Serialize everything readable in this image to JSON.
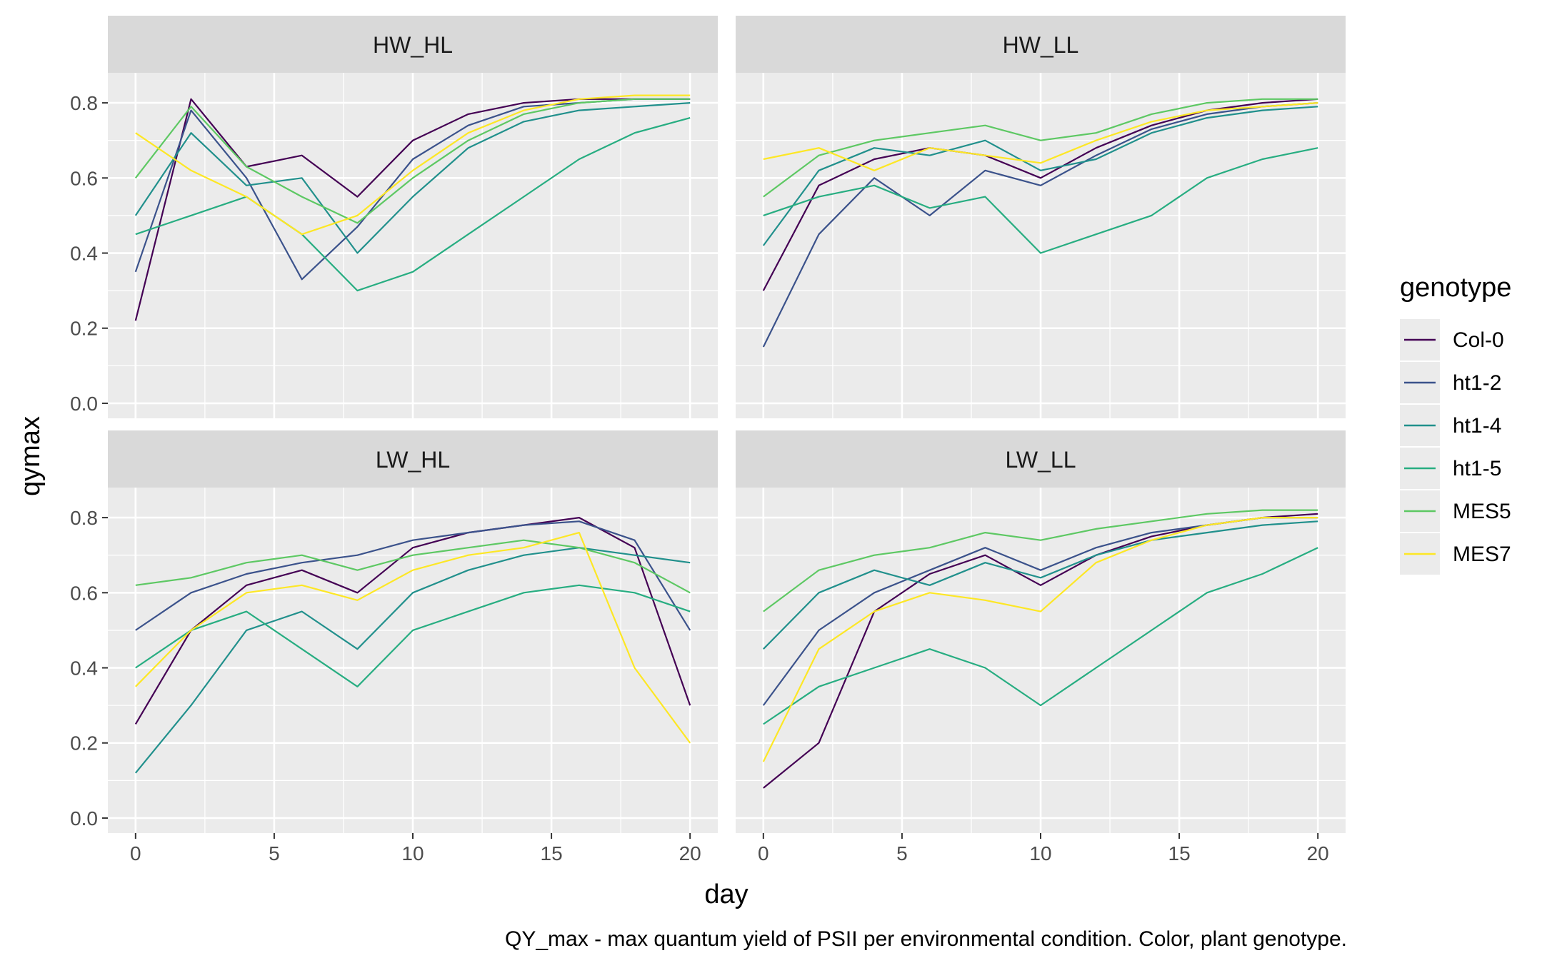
{
  "chart_data": {
    "type": "line",
    "facet_layout": "2x2",
    "xlabel": "day",
    "ylabel": "qymax",
    "caption": "QY_max - max quantum yield of PSII per environmental condition. Color, plant genotype.",
    "xlim": [
      -1,
      21
    ],
    "ylim": [
      -0.04,
      0.88
    ],
    "x_ticks": [
      0,
      5,
      10,
      15,
      20
    ],
    "y_ticks": [
      0.0,
      0.2,
      0.4,
      0.6,
      0.8
    ],
    "x_tick_labels": [
      "0",
      "5",
      "10",
      "15",
      "20"
    ],
    "y_tick_labels": [
      "0.0",
      "0.2",
      "0.4",
      "0.6",
      "0.8"
    ],
    "grid": true,
    "days": [
      0,
      2,
      4,
      6,
      8,
      10,
      12,
      14,
      16,
      18,
      20
    ],
    "legend": {
      "title": "genotype",
      "position": "right",
      "entries": [
        "Col-0",
        "ht1-2",
        "ht1-4",
        "ht1-5",
        "MES5",
        "MES7"
      ]
    },
    "series_colors": {
      "Col-0": "#440154",
      "ht1-2": "#3B528B",
      "ht1-4": "#21908C",
      "ht1-5": "#27AD81",
      "MES5": "#5DC863",
      "MES7": "#FDE725"
    },
    "facets": [
      {
        "label": "HW_HL",
        "series": [
          {
            "genotype": "Col-0",
            "x": [
              0,
              2,
              4,
              6,
              8,
              10,
              12,
              14,
              16,
              18,
              20
            ],
            "y": [
              0.22,
              0.81,
              0.63,
              0.66,
              0.55,
              0.7,
              0.77,
              0.8,
              0.81,
              0.81,
              0.81
            ]
          },
          {
            "genotype": "ht1-2",
            "x": [
              0,
              2,
              4,
              6,
              8,
              10,
              12,
              14,
              16,
              18,
              20
            ],
            "y": [
              0.35,
              0.78,
              0.6,
              0.33,
              0.47,
              0.65,
              0.74,
              0.79,
              0.8,
              0.81,
              0.81
            ]
          },
          {
            "genotype": "ht1-4",
            "x": [
              0,
              2,
              4,
              6,
              8,
              10,
              12,
              14,
              16,
              18,
              20
            ],
            "y": [
              0.5,
              0.72,
              0.58,
              0.6,
              0.4,
              0.55,
              0.68,
              0.75,
              0.78,
              0.79,
              0.8
            ]
          },
          {
            "genotype": "ht1-5",
            "x": [
              0,
              2,
              4,
              6,
              8,
              10,
              12,
              14,
              16,
              18,
              20
            ],
            "y": [
              0.45,
              0.5,
              0.55,
              0.45,
              0.3,
              0.35,
              0.45,
              0.55,
              0.65,
              0.72,
              0.76
            ]
          },
          {
            "genotype": "MES5",
            "x": [
              0,
              2,
              4,
              6,
              8,
              10,
              12,
              14,
              16,
              18,
              20
            ],
            "y": [
              0.6,
              0.79,
              0.63,
              0.55,
              0.48,
              0.6,
              0.7,
              0.77,
              0.8,
              0.81,
              0.81
            ]
          },
          {
            "genotype": "MES7",
            "x": [
              0,
              2,
              4,
              6,
              8,
              10,
              12,
              14,
              16,
              18,
              20
            ],
            "y": [
              0.72,
              0.62,
              0.55,
              0.45,
              0.5,
              0.62,
              0.72,
              0.78,
              0.81,
              0.82,
              0.82
            ]
          }
        ]
      },
      {
        "label": "HW_LL",
        "series": [
          {
            "genotype": "Col-0",
            "x": [
              0,
              2,
              4,
              6,
              8,
              10,
              12,
              14,
              16,
              18,
              20
            ],
            "y": [
              0.3,
              0.58,
              0.65,
              0.68,
              0.66,
              0.6,
              0.68,
              0.74,
              0.78,
              0.8,
              0.81
            ]
          },
          {
            "genotype": "ht1-2",
            "x": [
              0,
              2,
              4,
              6,
              8,
              10,
              12,
              14,
              16,
              18,
              20
            ],
            "y": [
              0.15,
              0.45,
              0.6,
              0.5,
              0.62,
              0.58,
              0.66,
              0.73,
              0.77,
              0.79,
              0.8
            ]
          },
          {
            "genotype": "ht1-4",
            "x": [
              0,
              2,
              4,
              6,
              8,
              10,
              12,
              14,
              16,
              18,
              20
            ],
            "y": [
              0.42,
              0.62,
              0.68,
              0.66,
              0.7,
              0.62,
              0.65,
              0.72,
              0.76,
              0.78,
              0.79
            ]
          },
          {
            "genotype": "ht1-5",
            "x": [
              0,
              2,
              4,
              6,
              8,
              10,
              12,
              14,
              16,
              18,
              20
            ],
            "y": [
              0.5,
              0.55,
              0.58,
              0.52,
              0.55,
              0.4,
              0.45,
              0.5,
              0.6,
              0.65,
              0.68
            ]
          },
          {
            "genotype": "MES5",
            "x": [
              0,
              2,
              4,
              6,
              8,
              10,
              12,
              14,
              16,
              18,
              20
            ],
            "y": [
              0.55,
              0.66,
              0.7,
              0.72,
              0.74,
              0.7,
              0.72,
              0.77,
              0.8,
              0.81,
              0.81
            ]
          },
          {
            "genotype": "MES7",
            "x": [
              0,
              2,
              4,
              6,
              8,
              10,
              12,
              14,
              16,
              18,
              20
            ],
            "y": [
              0.65,
              0.68,
              0.62,
              0.68,
              0.66,
              0.64,
              0.7,
              0.75,
              0.78,
              0.79,
              0.8
            ]
          }
        ]
      },
      {
        "label": "LW_HL",
        "series": [
          {
            "genotype": "Col-0",
            "x": [
              0,
              2,
              4,
              6,
              8,
              10,
              12,
              14,
              16,
              18,
              20
            ],
            "y": [
              0.25,
              0.5,
              0.62,
              0.66,
              0.6,
              0.72,
              0.76,
              0.78,
              0.8,
              0.72,
              0.3
            ]
          },
          {
            "genotype": "ht1-2",
            "x": [
              0,
              2,
              4,
              6,
              8,
              10,
              12,
              14,
              16,
              18,
              20
            ],
            "y": [
              0.5,
              0.6,
              0.65,
              0.68,
              0.7,
              0.74,
              0.76,
              0.78,
              0.79,
              0.74,
              0.5
            ]
          },
          {
            "genotype": "ht1-4",
            "x": [
              0,
              2,
              4,
              6,
              8,
              10,
              12,
              14,
              16,
              18,
              20
            ],
            "y": [
              0.12,
              0.3,
              0.5,
              0.55,
              0.45,
              0.6,
              0.66,
              0.7,
              0.72,
              0.7,
              0.68
            ]
          },
          {
            "genotype": "ht1-5",
            "x": [
              0,
              2,
              4,
              6,
              8,
              10,
              12,
              14,
              16,
              18,
              20
            ],
            "y": [
              0.4,
              0.5,
              0.55,
              0.45,
              0.35,
              0.5,
              0.55,
              0.6,
              0.62,
              0.6,
              0.55
            ]
          },
          {
            "genotype": "MES5",
            "x": [
              0,
              2,
              4,
              6,
              8,
              10,
              12,
              14,
              16,
              18,
              20
            ],
            "y": [
              0.62,
              0.64,
              0.68,
              0.7,
              0.66,
              0.7,
              0.72,
              0.74,
              0.72,
              0.68,
              0.6
            ]
          },
          {
            "genotype": "MES7",
            "x": [
              0,
              2,
              4,
              6,
              8,
              10,
              12,
              14,
              16,
              18,
              20
            ],
            "y": [
              0.35,
              0.5,
              0.6,
              0.62,
              0.58,
              0.66,
              0.7,
              0.72,
              0.76,
              0.4,
              0.2
            ]
          }
        ]
      },
      {
        "label": "LW_LL",
        "series": [
          {
            "genotype": "Col-0",
            "x": [
              0,
              2,
              4,
              6,
              8,
              10,
              12,
              14,
              16,
              18,
              20
            ],
            "y": [
              0.08,
              0.2,
              0.55,
              0.65,
              0.7,
              0.62,
              0.7,
              0.75,
              0.78,
              0.8,
              0.81
            ]
          },
          {
            "genotype": "ht1-2",
            "x": [
              0,
              2,
              4,
              6,
              8,
              10,
              12,
              14,
              16,
              18,
              20
            ],
            "y": [
              0.3,
              0.5,
              0.6,
              0.66,
              0.72,
              0.66,
              0.72,
              0.76,
              0.78,
              0.8,
              0.8
            ]
          },
          {
            "genotype": "ht1-4",
            "x": [
              0,
              2,
              4,
              6,
              8,
              10,
              12,
              14,
              16,
              18,
              20
            ],
            "y": [
              0.45,
              0.6,
              0.66,
              0.62,
              0.68,
              0.64,
              0.7,
              0.74,
              0.76,
              0.78,
              0.79
            ]
          },
          {
            "genotype": "ht1-5",
            "x": [
              0,
              2,
              4,
              6,
              8,
              10,
              12,
              14,
              16,
              18,
              20
            ],
            "y": [
              0.25,
              0.35,
              0.4,
              0.45,
              0.4,
              0.3,
              0.4,
              0.5,
              0.6,
              0.65,
              0.72
            ]
          },
          {
            "genotype": "MES5",
            "x": [
              0,
              2,
              4,
              6,
              8,
              10,
              12,
              14,
              16,
              18,
              20
            ],
            "y": [
              0.55,
              0.66,
              0.7,
              0.72,
              0.76,
              0.74,
              0.77,
              0.79,
              0.81,
              0.82,
              0.82
            ]
          },
          {
            "genotype": "MES7",
            "x": [
              0,
              2,
              4,
              6,
              8,
              10,
              12,
              14,
              16,
              18,
              20
            ],
            "y": [
              0.15,
              0.45,
              0.55,
              0.6,
              0.58,
              0.55,
              0.68,
              0.74,
              0.78,
              0.8,
              0.8
            ]
          }
        ]
      }
    ]
  }
}
